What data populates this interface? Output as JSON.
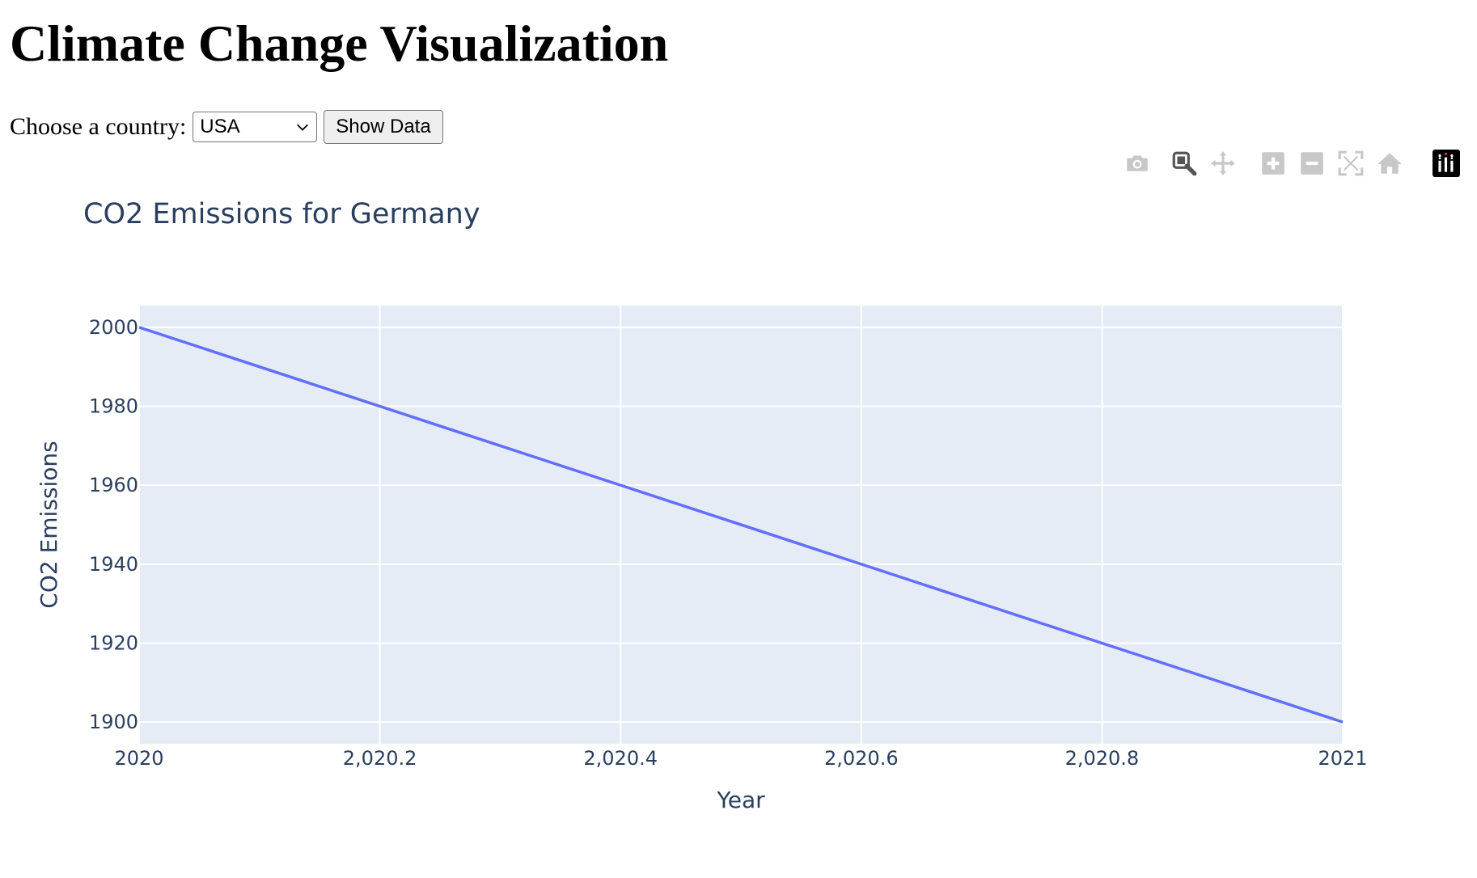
{
  "page": {
    "title": "Climate Change Visualization"
  },
  "controls": {
    "country_label": "Choose a country:",
    "country_selected": "USA",
    "show_button": "Show Data"
  },
  "modebar": {
    "buttons": [
      "camera-icon",
      "zoom-icon",
      "pan-icon",
      "zoom-in-icon",
      "zoom-out-icon",
      "autoscale-icon",
      "home-icon",
      "plotly-logo-icon"
    ]
  },
  "colors": {
    "line": "#636efa",
    "plot_bg": "#e5ecf6",
    "grid": "#ffffff",
    "text": "#2a3f5f"
  },
  "chart_data": {
    "type": "line",
    "title": "CO2 Emissions for Germany",
    "xlabel": "Year",
    "ylabel": "CO2 Emissions",
    "x": [
      2020,
      2021
    ],
    "series": [
      {
        "values": [
          2000,
          1900
        ]
      }
    ],
    "xlim": [
      2020,
      2021
    ],
    "ylim": [
      1894.5,
      2005.5
    ],
    "xticks": [
      2020,
      2020.2,
      2020.4,
      2020.6,
      2020.8,
      2021
    ],
    "xtick_labels": [
      "2020",
      "2,020.2",
      "2,020.4",
      "2,020.6",
      "2,020.8",
      "2021"
    ],
    "yticks": [
      1900,
      1920,
      1940,
      1960,
      1980,
      2000
    ],
    "ytick_labels": [
      "1900",
      "1920",
      "1940",
      "1960",
      "1980",
      "2000"
    ],
    "grid": true,
    "legend": "none"
  }
}
